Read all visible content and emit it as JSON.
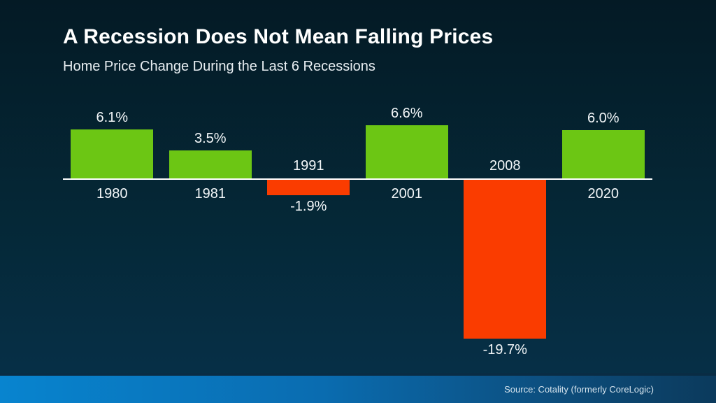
{
  "slide": {
    "title": "A Recession Does Not Mean Falling Prices",
    "subtitle": "Home Price Change During the Last 6 Recessions",
    "source": "Source: Cotality (formerly CoreLogic)"
  },
  "colors": {
    "positive_bar": "#6CC614",
    "negative_bar": "#FA3C00",
    "axis": "#FFFFFF",
    "background_top": "#041A25",
    "background_bottom": "#063048",
    "footer_left": "#0884CF",
    "footer_right": "#0B3A5C",
    "label_text": "#F2F6F8"
  },
  "chart_data": {
    "type": "bar",
    "title": "A Recession Does Not Mean Falling Prices",
    "subtitle": "Home Price Change During the Last 6 Recessions",
    "categories": [
      "1980",
      "1981",
      "1991",
      "2001",
      "2008",
      "2020"
    ],
    "values": [
      6.1,
      3.5,
      -1.9,
      6.6,
      -19.7,
      6.0
    ],
    "value_labels": [
      "6.1%",
      "3.5%",
      "-1.9%",
      "6.6%",
      "-19.7%",
      "6.0%"
    ],
    "xlabel": "",
    "ylabel": "",
    "ylim": [
      -22,
      9
    ],
    "grid": false,
    "legend": null,
    "baseline": 0,
    "positive_color": "#6CC614",
    "negative_color": "#FA3C00"
  }
}
